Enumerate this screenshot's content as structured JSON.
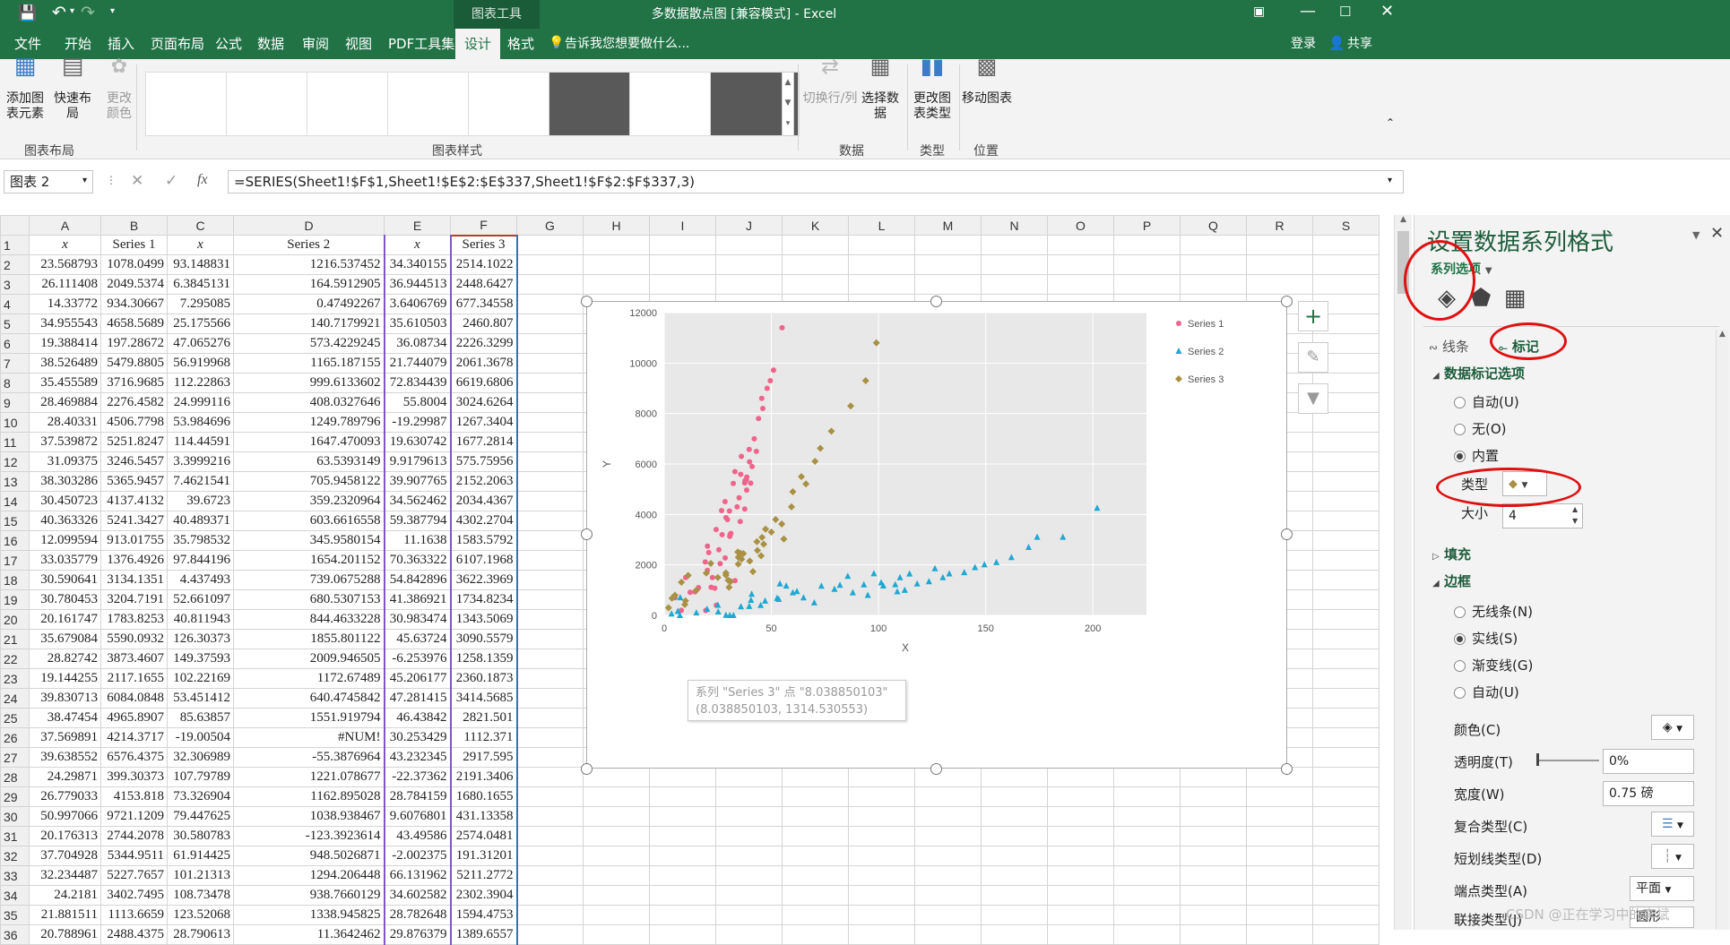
{
  "window": {
    "title": "多数据散点图 [兼容模式] - Excel",
    "context_tab": "图表工具",
    "login": "登录",
    "share": "共享"
  },
  "tabs": [
    "文件",
    "开始",
    "插入",
    "页面布局",
    "公式",
    "数据",
    "审阅",
    "视图",
    "PDF工具集",
    "设计",
    "格式"
  ],
  "tellme": "告诉我您想要做什么...",
  "ribbon": {
    "add_element": "添加图表元素",
    "quick_layout": "快速布局",
    "change_colors": "更改颜色",
    "group_layout": "图表布局",
    "group_styles": "图表样式",
    "switch_row_col": "切换行/列",
    "select_data": "选择数据",
    "group_data": "数据",
    "change_type": "更改图表类型",
    "group_type": "类型",
    "move_chart": "移动图表",
    "group_location": "位置"
  },
  "formula": {
    "namebox": "图表 2",
    "fx": "fx",
    "text": "=SERIES(Sheet1!$F$1,Sheet1!$E$2:$E$337,Sheet1!$F$2:$F$337,3)"
  },
  "columns": [
    "A",
    "B",
    "C",
    "D",
    "E",
    "F",
    "G",
    "H",
    "I",
    "J",
    "K",
    "L",
    "M",
    "N",
    "O",
    "P",
    "Q",
    "R",
    "S"
  ],
  "rows": [
    [
      "x",
      "Series 1",
      "x",
      "Series 2",
      "x",
      "Series 3"
    ],
    [
      "23.568793",
      "1078.0499",
      "93.148831",
      "1216.537452",
      "34.340155",
      "2514.1022"
    ],
    [
      "26.111408",
      "2049.5374",
      "6.3845131",
      "164.5912905",
      "36.944513",
      "2448.6427"
    ],
    [
      "14.33772",
      "934.30667",
      "7.295085",
      "0.47492267",
      "3.6406769",
      "677.34558"
    ],
    [
      "34.955543",
      "4658.5689",
      "25.175566",
      "140.7179921",
      "35.610503",
      "2460.807"
    ],
    [
      "19.388414",
      "197.28672",
      "47.065276",
      "573.4229245",
      "36.08734",
      "2226.3299"
    ],
    [
      "38.526489",
      "5479.8805",
      "56.919968",
      "1165.187155",
      "21.744079",
      "2061.3678"
    ],
    [
      "35.455589",
      "3716.9685",
      "112.22863",
      "999.6133602",
      "72.834439",
      "6619.6806"
    ],
    [
      "28.469884",
      "2276.4582",
      "24.999116",
      "408.0327646",
      "55.8004",
      "3024.6264"
    ],
    [
      "28.40331",
      "4506.7798",
      "53.984696",
      "1249.789796",
      "-19.29987",
      "1267.3404"
    ],
    [
      "37.539872",
      "5251.8247",
      "114.44591",
      "1647.470093",
      "19.630742",
      "1677.2814"
    ],
    [
      "31.09375",
      "3246.5457",
      "3.3999216",
      "63.5393149",
      "9.9179613",
      "575.75956"
    ],
    [
      "38.303286",
      "5365.9457",
      "7.4621541",
      "705.9458122",
      "39.907765",
      "2152.2063"
    ],
    [
      "30.450723",
      "4137.4132",
      "39.6723",
      "359.2320964",
      "34.562462",
      "2034.4367"
    ],
    [
      "40.363326",
      "5241.3427",
      "40.489371",
      "603.6616558",
      "59.387794",
      "4302.2704"
    ],
    [
      "12.099594",
      "913.01755",
      "35.798532",
      "345.9580154",
      "11.1638",
      "1583.5792"
    ],
    [
      "33.035779",
      "1376.4926",
      "97.844196",
      "1654.201152",
      "70.363322",
      "6107.1968"
    ],
    [
      "30.590641",
      "3134.1351",
      "4.437493",
      "739.0675288",
      "54.842896",
      "3622.3969"
    ],
    [
      "30.780453",
      "3204.7191",
      "52.661097",
      "680.5307153",
      "41.386921",
      "1734.8234"
    ],
    [
      "20.161747",
      "1783.8253",
      "40.811943",
      "844.4633228",
      "30.983474",
      "1343.5069"
    ],
    [
      "35.679084",
      "5590.0932",
      "126.30373",
      "1855.801122",
      "45.63724",
      "3090.5579"
    ],
    [
      "28.82742",
      "3873.4607",
      "149.37593",
      "2009.946505",
      "-6.253976",
      "1258.1359"
    ],
    [
      "19.144255",
      "2117.1655",
      "102.22169",
      "1172.67489",
      "45.206177",
      "2360.1873"
    ],
    [
      "39.830713",
      "6084.0848",
      "53.451412",
      "640.4745842",
      "47.281415",
      "3414.5685"
    ],
    [
      "38.47454",
      "4965.8907",
      "85.63857",
      "1551.919794",
      "46.43842",
      "2821.501"
    ],
    [
      "37.569891",
      "4214.3717",
      "-19.00504",
      "#NUM!",
      "30.253429",
      "1112.371"
    ],
    [
      "39.638552",
      "6576.4375",
      "32.306989",
      "-55.3876964",
      "43.232345",
      "2917.595"
    ],
    [
      "24.29871",
      "399.30373",
      "107.79789",
      "1221.078677",
      "-22.37362",
      "2191.3406"
    ],
    [
      "26.779033",
      "4153.818",
      "73.326904",
      "1162.895028",
      "28.784159",
      "1680.1655"
    ],
    [
      "50.997066",
      "9721.1209",
      "79.447625",
      "1038.938467",
      "9.6076801",
      "431.13358"
    ],
    [
      "20.176313",
      "2744.2078",
      "30.580783",
      "-123.3923614",
      "43.49586",
      "2574.0481"
    ],
    [
      "37.704928",
      "5344.9511",
      "61.914425",
      "948.5026871",
      "-2.002375",
      "191.31201"
    ],
    [
      "32.234487",
      "5227.7657",
      "101.21313",
      "1294.206448",
      "66.131962",
      "5211.2772"
    ],
    [
      "24.2181",
      "3402.7495",
      "108.73478",
      "938.7660129",
      "34.602582",
      "2302.3904"
    ],
    [
      "21.881511",
      "1113.6659",
      "123.52068",
      "1338.945825",
      "28.782648",
      "1594.4753"
    ],
    [
      "20.788961",
      "2488.4375",
      "28.790613",
      "11.3642462",
      "29.876379",
      "1389.6557"
    ]
  ],
  "chart_data": {
    "type": "scatter",
    "xlabel": "X",
    "ylabel": "Y",
    "xlim": [
      0,
      225
    ],
    "ylim": [
      0,
      12000
    ],
    "xticks": [
      0,
      50,
      100,
      150,
      200
    ],
    "yticks": [
      0,
      2000,
      4000,
      6000,
      8000,
      10000,
      12000
    ],
    "legend": "right",
    "grid": true,
    "tooltip": "系列 \"Series 3\" 点 \"8.038850103\" (8.038850103, 1314.530553)",
    "series": [
      {
        "name": "Series 1",
        "color": "#f0648c",
        "marker": "circle",
        "points": [
          [
            23.57,
            1078
          ],
          [
            26.11,
            2050
          ],
          [
            14.34,
            934
          ],
          [
            34.96,
            4659
          ],
          [
            19.39,
            197
          ],
          [
            38.53,
            5480
          ],
          [
            35.46,
            3717
          ],
          [
            28.47,
            2276
          ],
          [
            28.4,
            4507
          ],
          [
            37.54,
            5252
          ],
          [
            31.09,
            3247
          ],
          [
            38.3,
            5366
          ],
          [
            30.45,
            4137
          ],
          [
            40.36,
            5241
          ],
          [
            12.1,
            913
          ],
          [
            33.04,
            1376
          ],
          [
            30.59,
            3134
          ],
          [
            30.78,
            3205
          ],
          [
            20.16,
            1784
          ],
          [
            35.68,
            5590
          ],
          [
            28.83,
            3873
          ],
          [
            19.14,
            2117
          ],
          [
            39.83,
            6084
          ],
          [
            38.47,
            4966
          ],
          [
            37.57,
            4214
          ],
          [
            39.64,
            6576
          ],
          [
            24.3,
            399
          ],
          [
            26.78,
            4154
          ],
          [
            51.0,
            9721
          ],
          [
            20.18,
            2744
          ],
          [
            37.7,
            5345
          ],
          [
            32.23,
            5228
          ],
          [
            24.22,
            3403
          ],
          [
            21.88,
            1114
          ],
          [
            20.79,
            2488
          ],
          [
            55.0,
            11400
          ],
          [
            48.0,
            9000
          ],
          [
            45.5,
            8600
          ],
          [
            44.0,
            7800
          ],
          [
            42.0,
            7000
          ],
          [
            36.0,
            6300
          ],
          [
            33.0,
            5700
          ],
          [
            27.0,
            3200
          ],
          [
            22.5,
            1500
          ],
          [
            16.0,
            1100
          ],
          [
            8.0,
            200
          ],
          [
            5.0,
            700
          ],
          [
            10.0,
            1500
          ],
          [
            43.0,
            6500
          ],
          [
            46.0,
            8200
          ],
          [
            49.5,
            9300
          ],
          [
            41.0,
            5900
          ],
          [
            34.0,
            4300
          ],
          [
            29.5,
            3800
          ],
          [
            25.5,
            2600
          ]
        ]
      },
      {
        "name": "Series 2",
        "color": "#1fa8d2",
        "marker": "triangle",
        "points": [
          [
            93.15,
            1217
          ],
          [
            6.38,
            165
          ],
          [
            7.3,
            0
          ],
          [
            25.18,
            141
          ],
          [
            47.07,
            573
          ],
          [
            56.92,
            1165
          ],
          [
            112.23,
            1000
          ],
          [
            25.0,
            408
          ],
          [
            53.98,
            1250
          ],
          [
            114.45,
            1647
          ],
          [
            3.4,
            64
          ],
          [
            7.46,
            706
          ],
          [
            39.67,
            359
          ],
          [
            40.49,
            604
          ],
          [
            35.8,
            346
          ],
          [
            97.84,
            1654
          ],
          [
            4.44,
            739
          ],
          [
            52.66,
            681
          ],
          [
            40.81,
            844
          ],
          [
            126.3,
            1856
          ],
          [
            149.38,
            2010
          ],
          [
            102.22,
            1173
          ],
          [
            53.45,
            640
          ],
          [
            85.64,
            1552
          ],
          [
            32.31,
            0
          ],
          [
            107.8,
            1221
          ],
          [
            73.33,
            1163
          ],
          [
            79.45,
            1039
          ],
          [
            30.58,
            0
          ],
          [
            61.91,
            949
          ],
          [
            101.21,
            1294
          ],
          [
            108.73,
            939
          ],
          [
            123.52,
            1339
          ],
          [
            28.79,
            11
          ],
          [
            202.0,
            4250
          ],
          [
            186.0,
            3100
          ],
          [
            174.0,
            3100
          ],
          [
            162.0,
            2300
          ],
          [
            155.0,
            2100
          ],
          [
            140.0,
            1700
          ],
          [
            130.0,
            1500
          ],
          [
            118.0,
            1250
          ],
          [
            95.0,
            800
          ],
          [
            88.0,
            900
          ],
          [
            70.0,
            500
          ],
          [
            65.0,
            700
          ],
          [
            60.0,
            900
          ],
          [
            45.0,
            400
          ],
          [
            15.0,
            100
          ],
          [
            20.0,
            250
          ],
          [
            133.0,
            1650
          ],
          [
            145.0,
            1900
          ],
          [
            82.0,
            1200
          ],
          [
            110.0,
            1500
          ],
          [
            170.0,
            2700
          ]
        ]
      },
      {
        "name": "Series 3",
        "color": "#a89142",
        "marker": "diamond",
        "points": [
          [
            34.34,
            2514
          ],
          [
            36.94,
            2449
          ],
          [
            3.64,
            677
          ],
          [
            35.61,
            2461
          ],
          [
            36.09,
            2226
          ],
          [
            21.74,
            2061
          ],
          [
            72.83,
            6620
          ],
          [
            55.8,
            3025
          ],
          [
            19.63,
            1677
          ],
          [
            9.92,
            576
          ],
          [
            39.91,
            2152
          ],
          [
            34.56,
            2034
          ],
          [
            59.39,
            4302
          ],
          [
            11.16,
            1584
          ],
          [
            70.36,
            6107
          ],
          [
            54.84,
            3622
          ],
          [
            41.39,
            1735
          ],
          [
            30.98,
            1344
          ],
          [
            45.64,
            3091
          ],
          [
            45.21,
            2360
          ],
          [
            47.28,
            3415
          ],
          [
            46.44,
            2822
          ],
          [
            30.25,
            1112
          ],
          [
            43.23,
            2918
          ],
          [
            28.78,
            1680
          ],
          [
            9.61,
            431
          ],
          [
            43.5,
            2574
          ],
          [
            66.13,
            5211
          ],
          [
            34.6,
            2302
          ],
          [
            28.78,
            1594
          ],
          [
            29.88,
            1390
          ],
          [
            8.04,
            1315
          ],
          [
            99.0,
            10800
          ],
          [
            94.0,
            9300
          ],
          [
            87.0,
            8300
          ],
          [
            78.0,
            7300
          ],
          [
            64.0,
            5500
          ],
          [
            60.0,
            4900
          ],
          [
            52.0,
            3800
          ],
          [
            50.0,
            3300
          ],
          [
            25.0,
            1500
          ],
          [
            15.0,
            1000
          ],
          [
            2.0,
            300
          ],
          [
            5.0,
            800
          ]
        ]
      }
    ]
  },
  "pane": {
    "title": "设置数据系列格式",
    "subtitle": "系列选项",
    "tab_line": "线条",
    "tab_marker": "标记",
    "sec_marker_options": "数据标记选项",
    "auto": "自动(U)",
    "none": "无(O)",
    "builtin": "内置",
    "type_label": "类型",
    "size_label": "大小",
    "size_value": "4",
    "sec_fill": "填充",
    "sec_border": "边框",
    "no_line": "无线条(N)",
    "solid": "实线(S)",
    "gradient": "渐变线(G)",
    "auto2": "自动(U)",
    "color": "颜色(C)",
    "transparency": "透明度(T)",
    "transparency_value": "0%",
    "width": "宽度(W)",
    "width_value": "0.75 磅",
    "compound": "复合类型(C)",
    "dash": "短划线类型(D)",
    "cap": "端点类型(A)",
    "cap_value": "平面",
    "join": "联接类型(J)",
    "join_value": "圆形"
  },
  "watermark": "CSDN @正在学习中的李斌"
}
